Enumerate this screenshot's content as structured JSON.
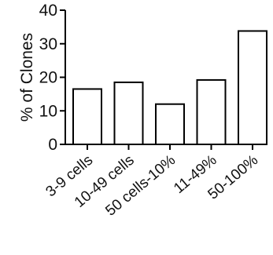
{
  "chart_data": {
    "type": "bar",
    "title": "",
    "xlabel": "",
    "ylabel": "% of Clones",
    "ylim": [
      0,
      40
    ],
    "yticks": [
      "0",
      "10",
      "20",
      "30",
      "40"
    ],
    "categories": [
      "3-9 cells",
      "10-49 cells",
      "50 cells-10%",
      "11-49%",
      "50-100%"
    ],
    "values": [
      16.5,
      18.5,
      12,
      19.2,
      33.8
    ],
    "grid": false,
    "bar_fill": "#ffffff",
    "bar_stroke": "#000000"
  }
}
